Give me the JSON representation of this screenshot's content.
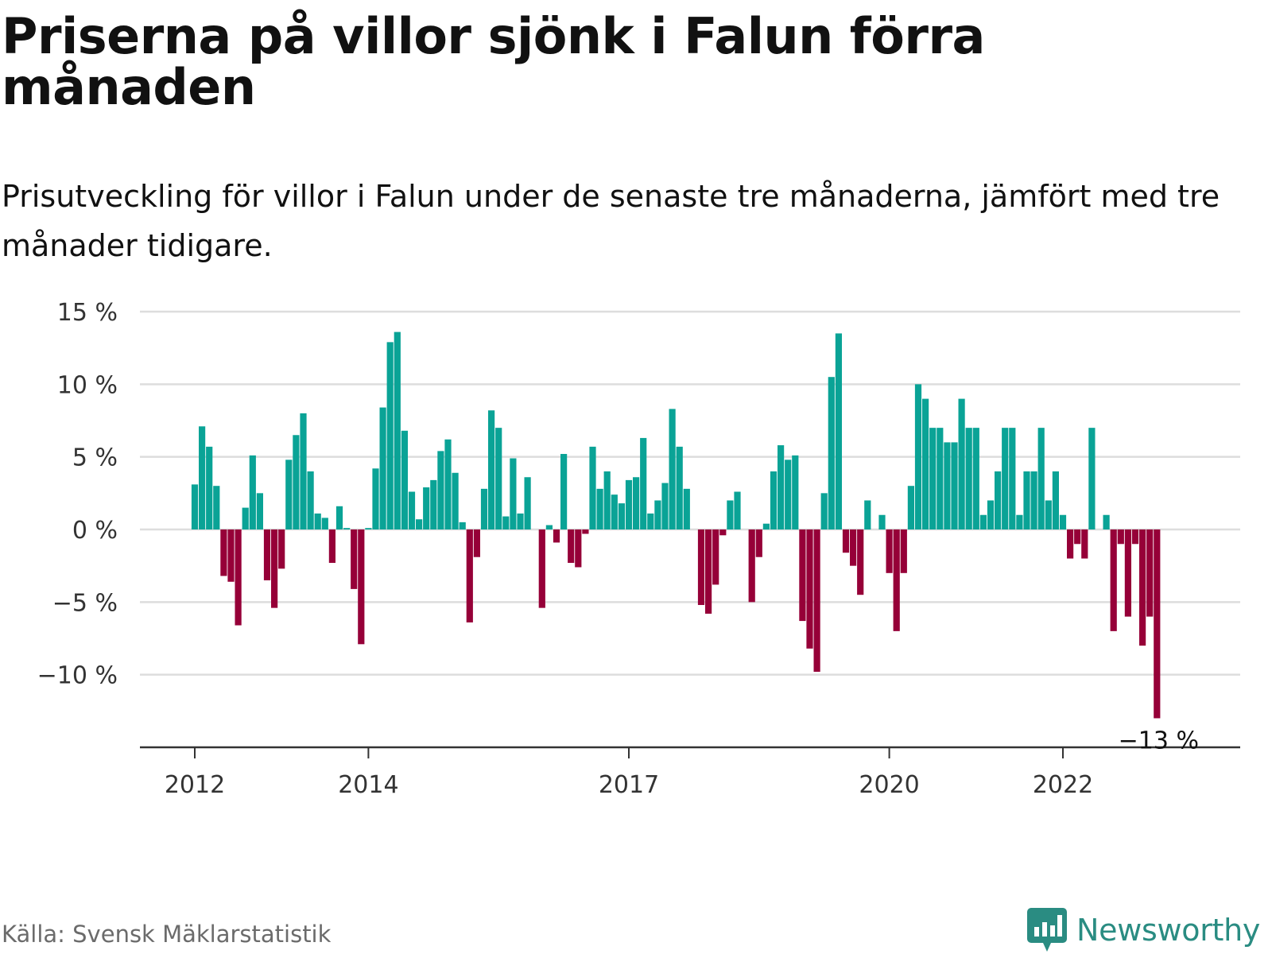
{
  "title": "Priserna på villor sjönk i Falun förra månaden",
  "subtitle": "Prisutveckling för villor i Falun under de senaste tre månaderna, jämfört med tre månader tidigare.",
  "source": "Källa: Svensk Mäklarstatistik",
  "brand": "Newsworthy",
  "colors": {
    "positive": "#0aa396",
    "negative": "#960038",
    "grid": "#dddddd",
    "axis": "#333333",
    "brand": "#2a8c82"
  },
  "chart_data": {
    "type": "bar",
    "ylim": [
      -15,
      15
    ],
    "grid": true,
    "yticks": [
      {
        "value": 15,
        "label": "15 %"
      },
      {
        "value": 10,
        "label": "10 %"
      },
      {
        "value": 5,
        "label": "5 %"
      },
      {
        "value": 0,
        "label": "0 %"
      },
      {
        "value": -5,
        "label": "−5 %"
      },
      {
        "value": -10,
        "label": "−10 %"
      }
    ],
    "xticks": [
      {
        "index": 0,
        "label": "2012"
      },
      {
        "index": 24,
        "label": "2014"
      },
      {
        "index": 60,
        "label": "2017"
      },
      {
        "index": 96,
        "label": "2020"
      },
      {
        "index": 120,
        "label": "2022"
      }
    ],
    "start": "2012-01",
    "values": [
      3.1,
      7.1,
      5.7,
      3.0,
      -3.2,
      -3.6,
      -6.6,
      1.5,
      5.1,
      2.5,
      -3.5,
      -5.4,
      -2.7,
      4.8,
      6.5,
      8.0,
      4.0,
      1.1,
      0.8,
      -2.3,
      1.6,
      0.1,
      -4.1,
      -7.9,
      0.1,
      4.2,
      8.4,
      12.9,
      13.6,
      6.8,
      2.6,
      0.7,
      2.9,
      3.4,
      5.4,
      6.2,
      3.9,
      0.5,
      -6.4,
      -1.9,
      2.8,
      8.2,
      7.0,
      0.9,
      4.9,
      1.1,
      3.6,
      0.0,
      -5.4,
      0.3,
      -0.9,
      5.2,
      -2.3,
      -2.6,
      -0.3,
      5.7,
      2.8,
      4.0,
      2.4,
      1.8,
      3.4,
      3.6,
      6.3,
      1.1,
      2.0,
      3.2,
      8.3,
      5.7,
      2.8,
      0.0,
      -5.2,
      -5.8,
      -3.8,
      -0.4,
      2.0,
      2.6,
      0.0,
      -5.0,
      -1.9,
      0.4,
      4.0,
      5.8,
      4.8,
      5.1,
      -6.3,
      -8.2,
      -9.8,
      2.5,
      10.5,
      13.5,
      -1.6,
      -2.5,
      -4.5,
      2.0,
      0.0,
      1.0,
      -3.0,
      -7.0,
      -3.0,
      3.0,
      10.0,
      9.0,
      7.0,
      7.0,
      6.0,
      6.0,
      9.0,
      7.0,
      7.0,
      1.0,
      2.0,
      4.0,
      7.0,
      7.0,
      1.0,
      4.0,
      4.0,
      7.0,
      2.0,
      4.0,
      1.0,
      -2.0,
      -1.0,
      -2.0,
      7.0,
      0.0,
      1.0,
      -7.0,
      -1.0,
      -6.0,
      -1.0,
      -8.0,
      -6.0,
      -13.0
    ],
    "annotation": {
      "index": 133,
      "label": "−13 %"
    }
  }
}
